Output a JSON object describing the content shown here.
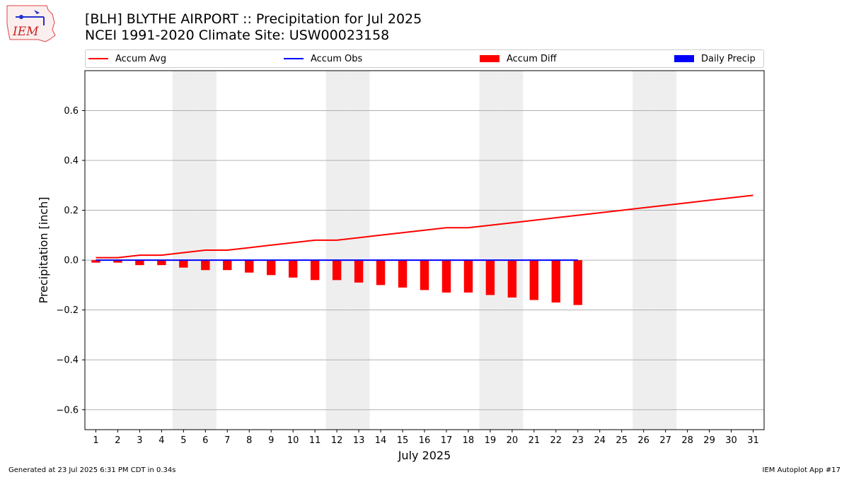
{
  "header": {
    "logo_text": "IEM",
    "title_line1": "[BLH] BLYTHE AIRPORT :: Precipitation for Jul 2025",
    "title_line2": "NCEI 1991-2020 Climate Site: USW00023158"
  },
  "legend": {
    "accum_avg": "Accum Avg",
    "accum_obs": "Accum Obs",
    "accum_diff": "Accum Diff",
    "daily_precip": "Daily Precip"
  },
  "footer": {
    "generated": "Generated at 23 Jul 2025 6:31 PM CDT in 0.34s",
    "app": "IEM Autoplot App #17"
  },
  "colors": {
    "accum_avg": "#ff0000",
    "accum_obs": "#0000ff",
    "accum_diff": "#ff0000",
    "daily_precip": "#0000ff",
    "weekend_band": "#eeeeee",
    "grid": "#b0b0b0"
  },
  "chart_data": {
    "type": "line",
    "xlabel": "July 2025",
    "ylabel": "Precipitation [inch]",
    "ylim": [
      -0.68,
      0.76
    ],
    "xlim": [
      0.5,
      31.5
    ],
    "grid": "horizontal",
    "legend_position": "top",
    "x": [
      1,
      2,
      3,
      4,
      5,
      6,
      7,
      8,
      9,
      10,
      11,
      12,
      13,
      14,
      15,
      16,
      17,
      18,
      19,
      20,
      21,
      22,
      23,
      24,
      25,
      26,
      27,
      28,
      29,
      30,
      31
    ],
    "x_tick_labels": [
      "1",
      "2",
      "3",
      "4",
      "5",
      "6",
      "7",
      "8",
      "9",
      "10",
      "11",
      "12",
      "13",
      "14",
      "15",
      "16",
      "17",
      "18",
      "19",
      "20",
      "21",
      "22",
      "23",
      "24",
      "25",
      "26",
      "27",
      "28",
      "29",
      "30",
      "31"
    ],
    "y_ticks": [
      -0.6,
      -0.4,
      -0.2,
      0.0,
      0.2,
      0.4,
      0.6
    ],
    "y_tick_labels": [
      "−0.6",
      "−0.4",
      "−0.2",
      "0.0",
      "0.2",
      "0.4",
      "0.6"
    ],
    "weekend_days": [
      5,
      6,
      12,
      13,
      19,
      20,
      26,
      27
    ],
    "series": [
      {
        "name": "Accum Avg",
        "kind": "line",
        "color": "#ff0000",
        "x": [
          1,
          2,
          3,
          4,
          5,
          6,
          7,
          8,
          9,
          10,
          11,
          12,
          13,
          14,
          15,
          16,
          17,
          18,
          19,
          20,
          21,
          22,
          23,
          24,
          25,
          26,
          27,
          28,
          29,
          30,
          31
        ],
        "values": [
          0.01,
          0.01,
          0.02,
          0.02,
          0.03,
          0.04,
          0.04,
          0.05,
          0.06,
          0.07,
          0.08,
          0.08,
          0.09,
          0.1,
          0.11,
          0.12,
          0.13,
          0.13,
          0.14,
          0.15,
          0.16,
          0.17,
          0.18,
          0.19,
          0.2,
          0.21,
          0.22,
          0.23,
          0.24,
          0.25,
          0.26
        ]
      },
      {
        "name": "Accum Obs",
        "kind": "line",
        "color": "#0000ff",
        "x": [
          1,
          2,
          3,
          4,
          5,
          6,
          7,
          8,
          9,
          10,
          11,
          12,
          13,
          14,
          15,
          16,
          17,
          18,
          19,
          20,
          21,
          22,
          23
        ],
        "values": [
          0,
          0,
          0,
          0,
          0,
          0,
          0,
          0,
          0,
          0,
          0,
          0,
          0,
          0,
          0,
          0,
          0,
          0,
          0,
          0,
          0,
          0,
          0
        ]
      },
      {
        "name": "Accum Diff",
        "kind": "bar",
        "color": "#ff0000",
        "x": [
          1,
          2,
          3,
          4,
          5,
          6,
          7,
          8,
          9,
          10,
          11,
          12,
          13,
          14,
          15,
          16,
          17,
          18,
          19,
          20,
          21,
          22,
          23
        ],
        "values": [
          -0.01,
          -0.01,
          -0.02,
          -0.02,
          -0.03,
          -0.04,
          -0.04,
          -0.05,
          -0.06,
          -0.07,
          -0.08,
          -0.08,
          -0.09,
          -0.1,
          -0.11,
          -0.12,
          -0.13,
          -0.13,
          -0.14,
          -0.15,
          -0.16,
          -0.17,
          -0.18
        ]
      },
      {
        "name": "Daily Precip",
        "kind": "bar",
        "color": "#0000ff",
        "x": [],
        "values": []
      }
    ]
  }
}
